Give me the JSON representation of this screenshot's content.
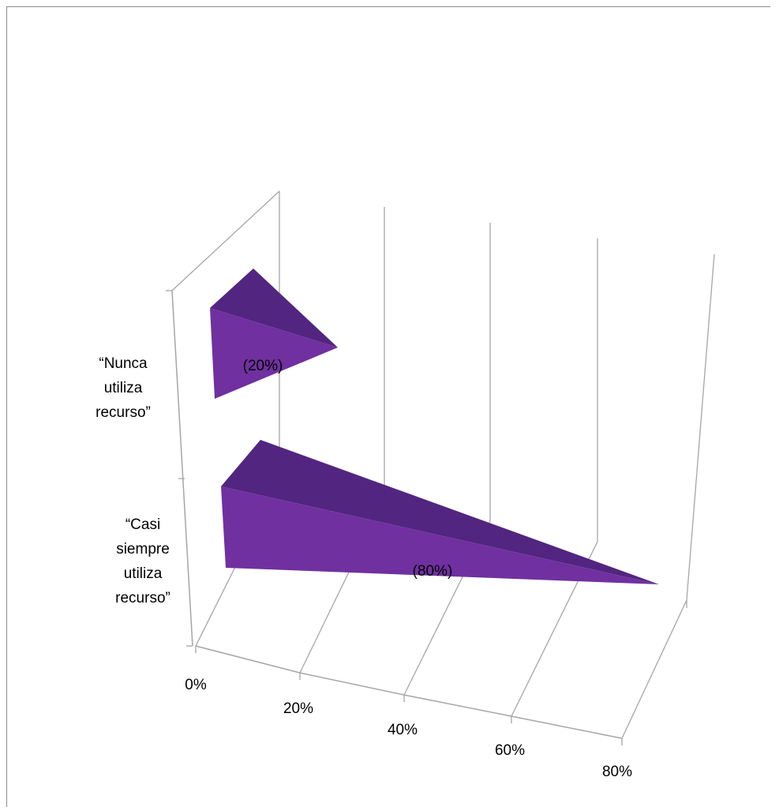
{
  "chart_data": {
    "type": "bar",
    "orientation": "horizontal",
    "style": "3d-pyramid",
    "categories": [
      "“Nunca utiliza recurso”",
      "“Casi siempre utiliza recurso”"
    ],
    "category_lines": [
      [
        "“Nunca",
        "utiliza",
        "recurso”"
      ],
      [
        "“Casi",
        "siempre",
        "utiliza",
        "recurso”"
      ]
    ],
    "values": [
      0.2,
      0.8
    ],
    "data_labels": [
      "(20%)",
      "(80%)"
    ],
    "x_ticks": [
      "0%",
      "20%",
      "40%",
      "60%",
      "80%"
    ],
    "xlim": [
      0,
      0.8
    ],
    "grid": true,
    "legend": "none",
    "colors": {
      "pyramid_front": "#7030a0",
      "pyramid_top": "#522580",
      "grid": "#a6a6a6"
    }
  }
}
